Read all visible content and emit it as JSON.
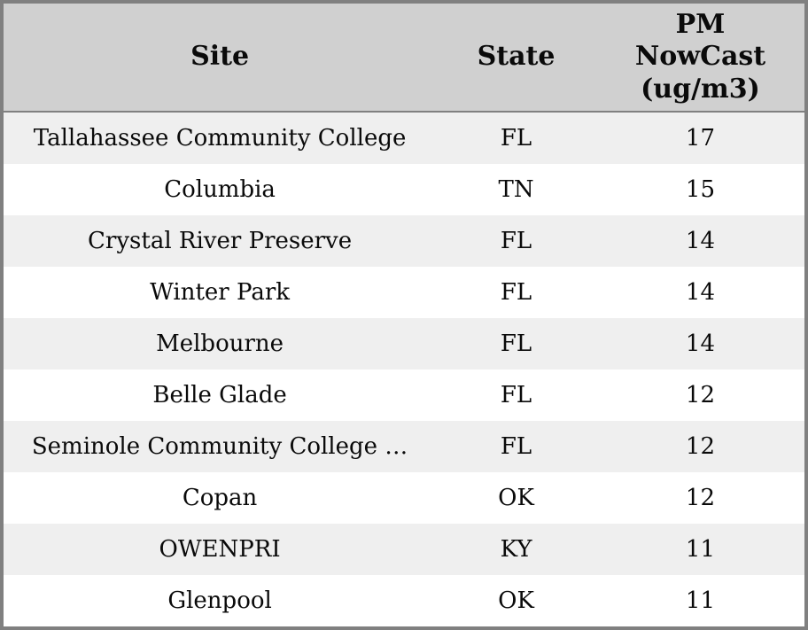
{
  "colors": {
    "outer_border": "#808080",
    "header_bg": "#d0d0d0",
    "header_separator": "#808080",
    "row_alt_bg": "#efefef",
    "row_bg": "#ffffff",
    "text": "#0a0a0a"
  },
  "chart_data": {
    "type": "table",
    "title": "",
    "columns": [
      "Site",
      "State",
      "PM NowCast (ug/m3)"
    ],
    "rows": [
      {
        "site": "Tallahassee Community College",
        "state": "FL",
        "pm_nowcast": "17"
      },
      {
        "site": "Columbia",
        "state": "TN",
        "pm_nowcast": "15"
      },
      {
        "site": "Crystal River Preserve",
        "state": "FL",
        "pm_nowcast": "14"
      },
      {
        "site": "Winter Park",
        "state": "FL",
        "pm_nowcast": "14"
      },
      {
        "site": "Melbourne",
        "state": "FL",
        "pm_nowcast": "14"
      },
      {
        "site": "Belle Glade",
        "state": "FL",
        "pm_nowcast": "12"
      },
      {
        "site": "Seminole Community College …",
        "state": "FL",
        "pm_nowcast": "12"
      },
      {
        "site": "Copan",
        "state": "OK",
        "pm_nowcast": "12"
      },
      {
        "site": "OWENPRI",
        "state": "KY",
        "pm_nowcast": "11"
      },
      {
        "site": "Glenpool",
        "state": "OK",
        "pm_nowcast": "11"
      }
    ],
    "layout": {
      "zebra_striping": true,
      "text_align": "center",
      "header_lines_pm_column": 3
    }
  },
  "header": {
    "site_label": "Site",
    "state_label": "State",
    "pm_label": "PM\nNowCast\n(ug/m3)"
  }
}
